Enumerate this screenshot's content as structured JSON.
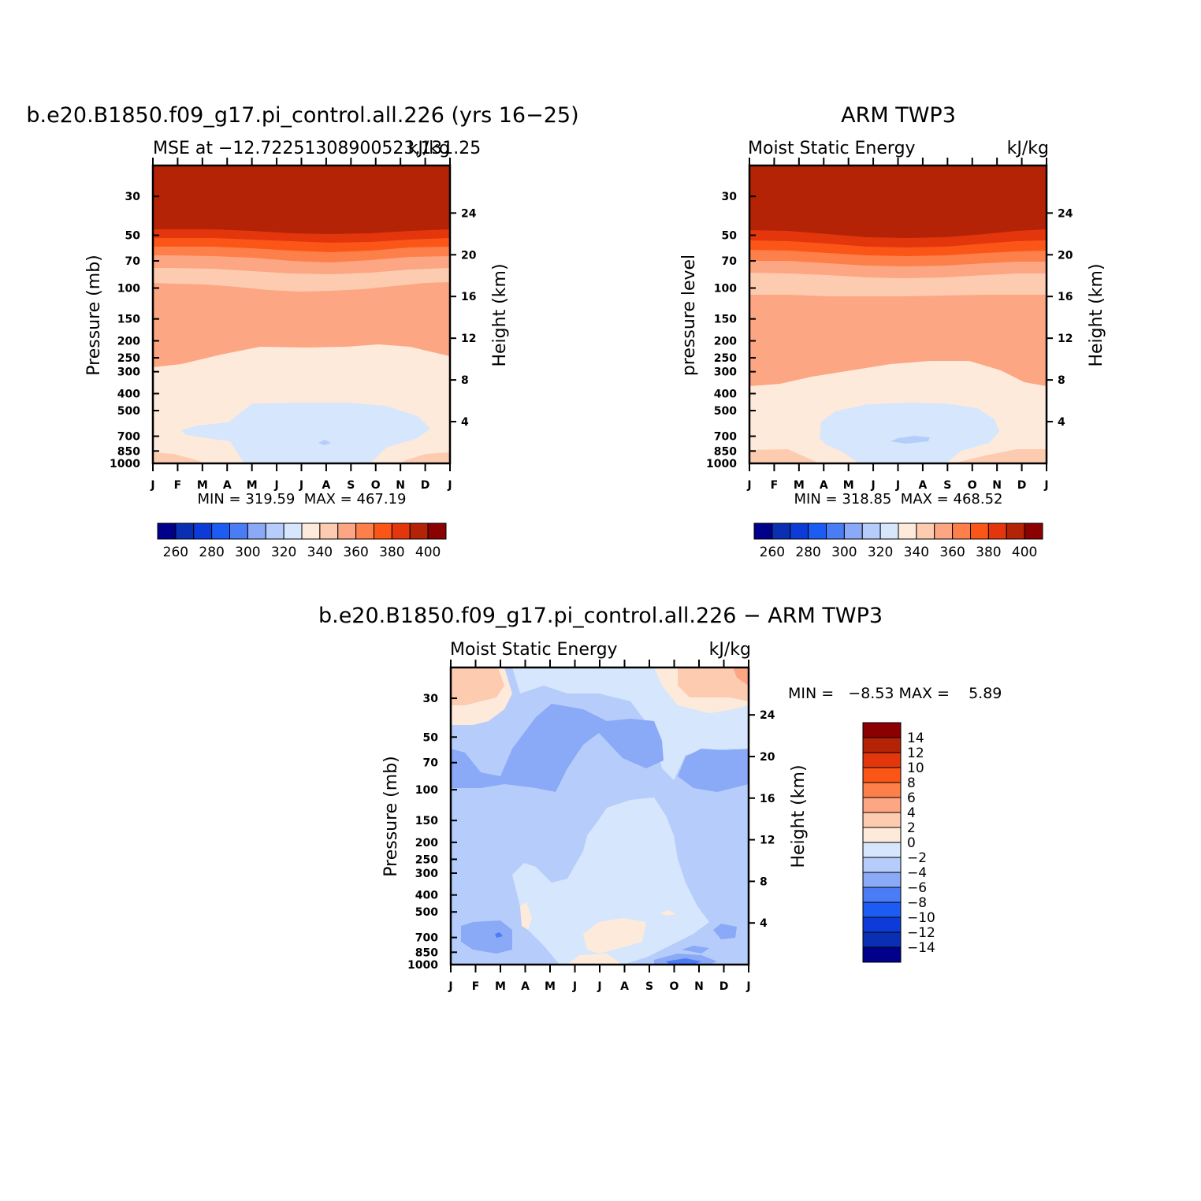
{
  "colors": {
    "mse_levels": [
      "#00008b",
      "#0a2fb3",
      "#0c3bd9",
      "#1d5cf2",
      "#4a7df5",
      "#8aa9f7",
      "#b6cdfb",
      "#d5e6fd",
      "#feeada",
      "#fdcbb0",
      "#fca683",
      "#fd7f4a",
      "#fb5618",
      "#e3360c",
      "#b52306",
      "#8b0000"
    ],
    "diff_levels": [
      "#00008b",
      "#0a2fb3",
      "#0c3bd9",
      "#1d5cf2",
      "#4a7df5",
      "#8aa9f7",
      "#b6cdfb",
      "#d5e6fd",
      "#feeada",
      "#fdcbb0",
      "#fca683",
      "#fd7f4a",
      "#fb5618",
      "#e3360c",
      "#b52306",
      "#8b0000"
    ]
  },
  "panels": {
    "model": {
      "title": "b.e20.B1850.f09_g17.pi_control.all.226 (yrs 16−25)",
      "left_label": "MSE at −12.72251308900523,131.25",
      "right_label": "kJ/kg",
      "ylabel": "Pressure (mb)",
      "y2label": "Height (km)",
      "stats": "MIN = 319.59  MAX = 467.19"
    },
    "obs": {
      "title": "ARM TWP3",
      "left_label": "Moist Static Energy",
      "right_label": "kJ/kg",
      "ylabel": "pressure level",
      "y2label": "Height (km)",
      "stats": "MIN = 318.85  MAX = 468.52"
    },
    "diff": {
      "title": "b.e20.B1850.f09_g17.pi_control.all.226 − ARM TWP3",
      "left_label": "Moist Static Energy",
      "right_label": "kJ/kg",
      "ylabel": "Pressure (mb)",
      "y2label": "Height (km)",
      "stats": "MIN =   −8.53 MAX =    5.89"
    }
  },
  "chart_data": [
    {
      "type": "heatmap",
      "title": "b.e20.B1850.f09_g17.pi_control.all.226 (yrs 16−25)",
      "subtitle": "MSE at −12.72251308900523,131.25",
      "units": "kJ/kg",
      "xlabel": "",
      "ylabel": "Pressure (mb)",
      "y2label": "Height (km)",
      "x_ticks": [
        "J",
        "F",
        "M",
        "A",
        "M",
        "J",
        "J",
        "A",
        "S",
        "O",
        "N",
        "D",
        "J"
      ],
      "y_ticks": [
        30,
        50,
        70,
        100,
        150,
        200,
        250,
        300,
        400,
        500,
        700,
        850,
        1000
      ],
      "y2_ticks": [
        4,
        8,
        12,
        16,
        20,
        24
      ],
      "y_scale": "log",
      "y_reversed": true,
      "ylim": [
        20,
        1000
      ],
      "colorbar_ticks": [
        260,
        280,
        300,
        320,
        340,
        360,
        380,
        400
      ],
      "min": 319.59,
      "max": 467.19
    },
    {
      "type": "heatmap",
      "title": "ARM TWP3",
      "subtitle": "Moist Static Energy",
      "units": "kJ/kg",
      "xlabel": "",
      "ylabel": "pressure level",
      "y2label": "Height (km)",
      "x_ticks": [
        "J",
        "F",
        "M",
        "A",
        "M",
        "J",
        "J",
        "A",
        "S",
        "O",
        "N",
        "D",
        "J"
      ],
      "y_ticks": [
        30,
        50,
        70,
        100,
        150,
        200,
        250,
        300,
        400,
        500,
        700,
        850,
        1000
      ],
      "y2_ticks": [
        4,
        8,
        12,
        16,
        20,
        24
      ],
      "y_scale": "log",
      "y_reversed": true,
      "ylim": [
        20,
        1000
      ],
      "colorbar_ticks": [
        260,
        280,
        300,
        320,
        340,
        360,
        380,
        400
      ],
      "min": 318.85,
      "max": 468.52
    },
    {
      "type": "heatmap",
      "title": "b.e20.B1850.f09_g17.pi_control.all.226 − ARM TWP3",
      "subtitle": "Moist Static Energy",
      "units": "kJ/kg",
      "xlabel": "",
      "ylabel": "Pressure (mb)",
      "y2label": "Height (km)",
      "x_ticks": [
        "J",
        "F",
        "M",
        "A",
        "M",
        "J",
        "J",
        "A",
        "S",
        "O",
        "N",
        "D",
        "J"
      ],
      "y_ticks": [
        30,
        50,
        70,
        100,
        150,
        200,
        250,
        300,
        400,
        500,
        700,
        850,
        1000
      ],
      "y2_ticks": [
        4,
        8,
        12,
        16,
        20,
        24
      ],
      "y_scale": "log",
      "y_reversed": true,
      "ylim": [
        20,
        1000
      ],
      "colorbar_ticks": [
        14,
        12,
        10,
        8,
        6,
        4,
        2,
        0,
        -2,
        -4,
        -6,
        -8,
        -10,
        -12,
        -14
      ],
      "colorbar_tick_labels": [
        "14",
        "12",
        "10",
        "8",
        "6",
        "4",
        "2",
        "0",
        "−2",
        "−4",
        "−6",
        "−8",
        "−10",
        "−12",
        "−14"
      ],
      "min": -8.53,
      "max": 5.89
    }
  ]
}
